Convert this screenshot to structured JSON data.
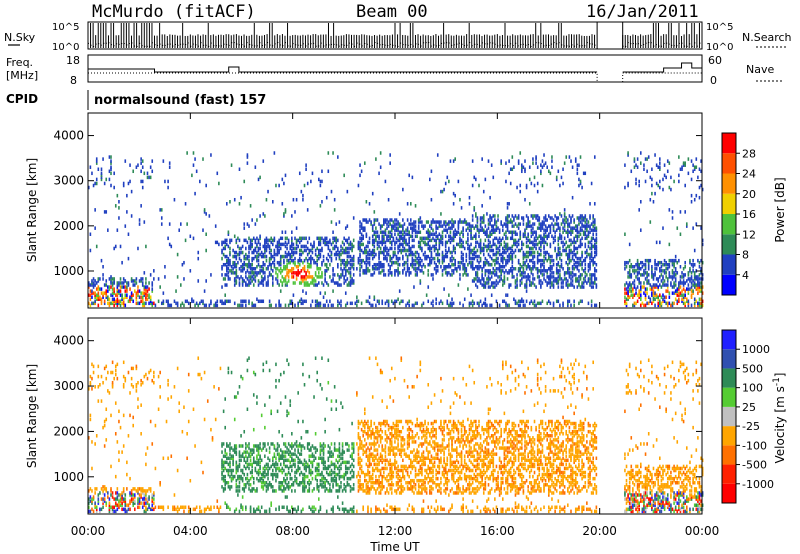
{
  "header": {
    "station": "McMurdo (fitACF)",
    "beam": "Beam 00",
    "date": "16/Jan/2011"
  },
  "sky_panel": {
    "left_label": "N.Sky",
    "right_label": "N.Search",
    "left_ticks": [
      "10^5",
      "10^0"
    ],
    "right_ticks": [
      "10^5",
      "10^0"
    ]
  },
  "freq_panel": {
    "left_label_1": "Freq.",
    "left_label_2": "[MHz]",
    "right_label": "Nave",
    "left_ticks": [
      "18",
      "8"
    ],
    "right_ticks": [
      "60",
      "0"
    ]
  },
  "cpid": {
    "label": "CPID",
    "value": "normalsound (fast) 157"
  },
  "colors": {
    "power_scale": [
      "#0000ff",
      "#2040c0",
      "#2e8b57",
      "#4fc23b",
      "#f0d000",
      "#ff9000",
      "#ff5000",
      "#ff0000"
    ],
    "velocity_scale": [
      "#2020ff",
      "#3050b0",
      "#2e8b57",
      "#55cc33",
      "#c0c0c0",
      "#ffa500",
      "#ff7000",
      "#ff2000",
      "#ff0000"
    ]
  },
  "chart_data": [
    {
      "type": "heatmap",
      "name": "power",
      "ylabel": "Slant Range [km]",
      "ylim": [
        180,
        4500
      ],
      "yticks": [
        "4000",
        "3000",
        "2000",
        "1000"
      ],
      "xlim": [
        "00:00",
        "24:00"
      ],
      "colorbar": {
        "label": "Power [dB]",
        "ticks": [
          "28",
          "24",
          "20",
          "16",
          "12",
          "8",
          "4"
        ],
        "range": [
          0,
          32
        ]
      },
      "x_gap_hours": [
        19.9,
        20.9
      ],
      "features": [
        {
          "t": [
            0.0,
            2.6
          ],
          "r": [
            200,
            800
          ],
          "level": "mixed"
        },
        {
          "t": [
            5.2,
            10.4
          ],
          "r": [
            650,
            1700
          ],
          "peak_t": 8.2,
          "peak_r": 900,
          "peak_db": 28
        },
        {
          "t": [
            10.5,
            15.0
          ],
          "r": [
            850,
            2100
          ],
          "level": "low"
        },
        {
          "t": [
            15.0,
            19.9
          ],
          "r": [
            600,
            2200
          ],
          "level": "low"
        },
        {
          "t": [
            20.9,
            24.0
          ],
          "r": [
            200,
            1200
          ],
          "level": "mixed"
        }
      ]
    },
    {
      "type": "heatmap",
      "name": "velocity",
      "ylabel": "Slant Range [km]",
      "xlabel": "Time UT",
      "ylim": [
        180,
        4500
      ],
      "yticks": [
        "4000",
        "3000",
        "2000",
        "1000"
      ],
      "xticks": [
        "00:00",
        "04:00",
        "08:00",
        "12:00",
        "16:00",
        "20:00",
        "00:00"
      ],
      "xlim": [
        "00:00",
        "24:00"
      ],
      "colorbar": {
        "label": "Velocity [m s",
        "label_sup": "-1",
        "label_end": "]",
        "ticks": [
          "1000",
          "500",
          "100",
          "25",
          "-25",
          "-100",
          "-500",
          "-1000"
        ]
      },
      "x_gap_hours": [
        19.9,
        20.9
      ],
      "features": [
        {
          "t": [
            5.2,
            10.4
          ],
          "r": [
            650,
            1700
          ],
          "velocity_sign": "positive"
        },
        {
          "t": [
            10.5,
            19.9
          ],
          "r": [
            600,
            2200
          ],
          "velocity_sign": "negative"
        },
        {
          "t": [
            20.9,
            24.0
          ],
          "r": [
            400,
            1200
          ],
          "velocity_sign": "negative"
        }
      ]
    }
  ]
}
